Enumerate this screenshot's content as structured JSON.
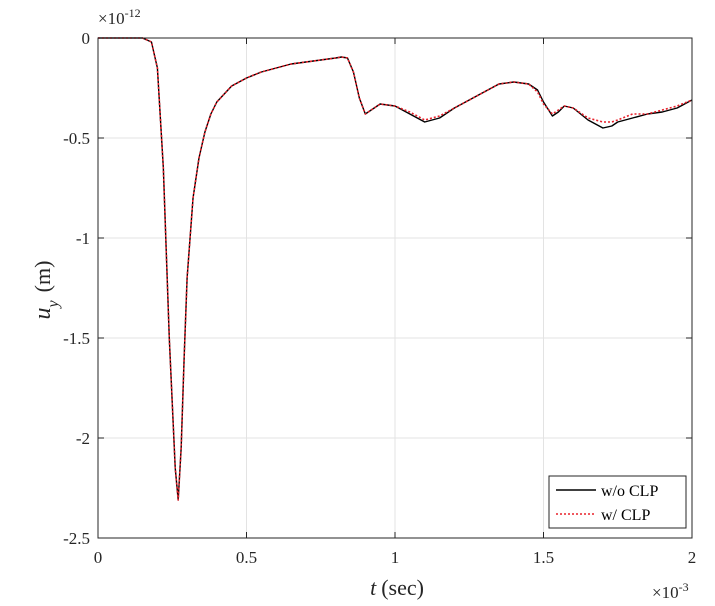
{
  "chart_data": {
    "type": "line",
    "xlabel_var": "t",
    "xlabel_unit": "(sec)",
    "ylabel_var": "u",
    "ylabel_sub": "y",
    "ylabel_unit": "(m)",
    "x_exponent_label": "×10",
    "x_exponent": "-3",
    "y_exponent_label": "×10",
    "y_exponent": "-12",
    "xlim": [
      0,
      2
    ],
    "ylim": [
      -2.5,
      0
    ],
    "x_ticks": [
      0,
      0.5,
      1,
      1.5,
      2
    ],
    "x_tick_labels": [
      "0",
      "0.5",
      "1",
      "1.5",
      "2"
    ],
    "y_ticks": [
      0,
      -0.5,
      -1,
      -1.5,
      -2,
      -2.5
    ],
    "y_tick_labels": [
      "0",
      "-0.5",
      "-1",
      "-1.5",
      "-2",
      "-2.5"
    ],
    "grid": true,
    "legend_position": "bottom-right",
    "series": [
      {
        "name": "w/o CLP",
        "color": "#000000",
        "style": "solid",
        "x": [
          0,
          0.05,
          0.1,
          0.15,
          0.18,
          0.2,
          0.22,
          0.24,
          0.26,
          0.27,
          0.28,
          0.29,
          0.3,
          0.32,
          0.34,
          0.36,
          0.38,
          0.4,
          0.45,
          0.5,
          0.55,
          0.6,
          0.65,
          0.7,
          0.75,
          0.8,
          0.82,
          0.84,
          0.86,
          0.88,
          0.9,
          0.92,
          0.95,
          1.0,
          1.05,
          1.1,
          1.15,
          1.2,
          1.25,
          1.3,
          1.35,
          1.4,
          1.45,
          1.48,
          1.5,
          1.53,
          1.55,
          1.57,
          1.6,
          1.65,
          1.7,
          1.73,
          1.75,
          1.8,
          1.85,
          1.9,
          1.95,
          2.0
        ],
        "y": [
          0,
          0,
          0,
          0,
          -0.02,
          -0.15,
          -0.65,
          -1.5,
          -2.15,
          -2.31,
          -2.05,
          -1.6,
          -1.2,
          -0.8,
          -0.6,
          -0.47,
          -0.38,
          -0.32,
          -0.24,
          -0.2,
          -0.17,
          -0.15,
          -0.13,
          -0.12,
          -0.11,
          -0.1,
          -0.095,
          -0.1,
          -0.17,
          -0.3,
          -0.38,
          -0.36,
          -0.33,
          -0.34,
          -0.38,
          -0.42,
          -0.4,
          -0.35,
          -0.31,
          -0.27,
          -0.23,
          -0.22,
          -0.23,
          -0.26,
          -0.32,
          -0.39,
          -0.37,
          -0.34,
          -0.35,
          -0.41,
          -0.45,
          -0.44,
          -0.42,
          -0.4,
          -0.38,
          -0.37,
          -0.35,
          -0.31
        ]
      },
      {
        "name": "w/ CLP",
        "color": "#e8202a",
        "style": "dotted",
        "x": [
          0,
          0.05,
          0.1,
          0.15,
          0.18,
          0.2,
          0.22,
          0.24,
          0.26,
          0.27,
          0.28,
          0.29,
          0.3,
          0.32,
          0.34,
          0.36,
          0.38,
          0.4,
          0.45,
          0.5,
          0.55,
          0.6,
          0.65,
          0.7,
          0.75,
          0.8,
          0.82,
          0.84,
          0.86,
          0.88,
          0.9,
          0.92,
          0.95,
          1.0,
          1.05,
          1.1,
          1.15,
          1.2,
          1.25,
          1.3,
          1.35,
          1.4,
          1.45,
          1.48,
          1.5,
          1.53,
          1.55,
          1.57,
          1.6,
          1.65,
          1.7,
          1.73,
          1.75,
          1.8,
          1.85,
          1.9,
          1.95,
          2.0
        ],
        "y": [
          0,
          0,
          0,
          0,
          -0.02,
          -0.15,
          -0.65,
          -1.5,
          -2.15,
          -2.31,
          -2.05,
          -1.6,
          -1.2,
          -0.8,
          -0.6,
          -0.47,
          -0.38,
          -0.32,
          -0.24,
          -0.2,
          -0.17,
          -0.15,
          -0.13,
          -0.12,
          -0.11,
          -0.1,
          -0.095,
          -0.1,
          -0.17,
          -0.3,
          -0.38,
          -0.36,
          -0.33,
          -0.34,
          -0.37,
          -0.41,
          -0.39,
          -0.35,
          -0.31,
          -0.27,
          -0.23,
          -0.22,
          -0.23,
          -0.27,
          -0.33,
          -0.38,
          -0.36,
          -0.34,
          -0.35,
          -0.4,
          -0.42,
          -0.42,
          -0.41,
          -0.38,
          -0.38,
          -0.36,
          -0.34,
          -0.31
        ]
      }
    ]
  }
}
